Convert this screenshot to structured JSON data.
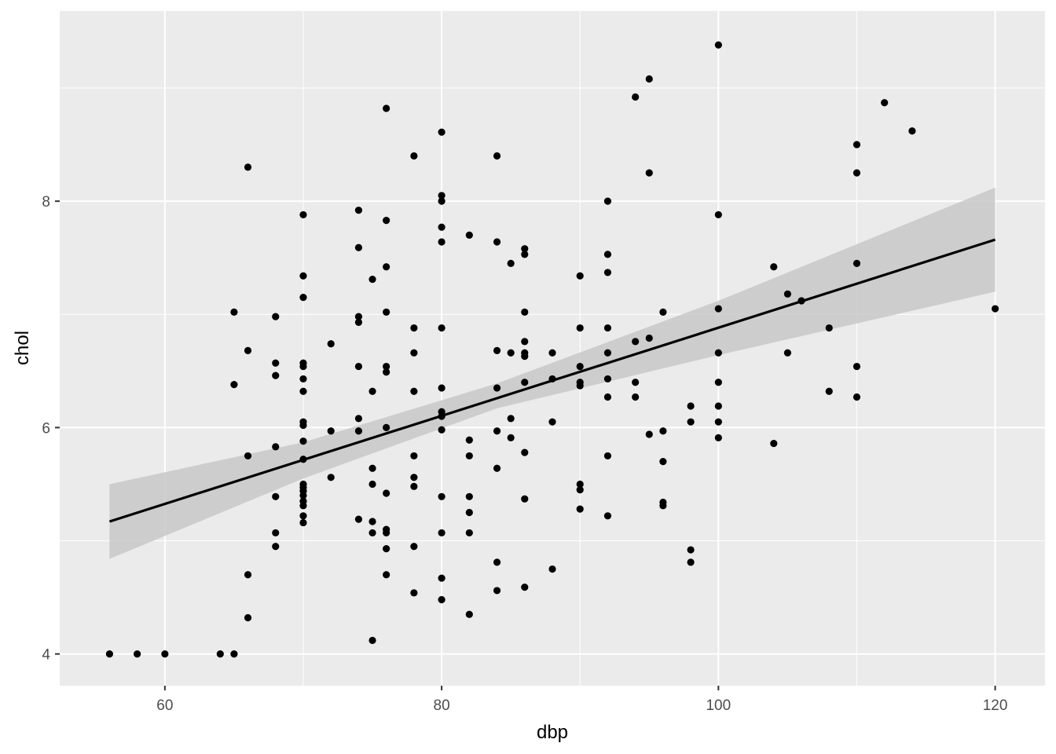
{
  "chart_data": {
    "type": "scatter",
    "xlabel": "dbp",
    "ylabel": "chol",
    "xlim": [
      52.4,
      123.6
    ],
    "ylim": [
      3.72,
      9.68
    ],
    "x_ticks": [
      60,
      80,
      100,
      120
    ],
    "y_ticks": [
      4,
      6,
      8
    ],
    "x_tick_labels": [
      "60",
      "80",
      "100",
      "120"
    ],
    "y_tick_labels": [
      "4",
      "6",
      "8"
    ],
    "grid": true,
    "colors": {
      "panel": "#ebebeb",
      "grid_major": "#ffffff",
      "points": "#000000",
      "fit_line": "#000000",
      "confidence_band": "#c8c8c8"
    },
    "points": [
      {
        "x": 56,
        "y": 4.0
      },
      {
        "x": 58,
        "y": 4.0
      },
      {
        "x": 60,
        "y": 4.0
      },
      {
        "x": 64,
        "y": 4.0
      },
      {
        "x": 65,
        "y": 4.0
      },
      {
        "x": 65,
        "y": 7.02
      },
      {
        "x": 65,
        "y": 6.38
      },
      {
        "x": 66,
        "y": 8.3
      },
      {
        "x": 66,
        "y": 6.68
      },
      {
        "x": 66,
        "y": 5.75
      },
      {
        "x": 66,
        "y": 4.7
      },
      {
        "x": 66,
        "y": 4.32
      },
      {
        "x": 68,
        "y": 6.98
      },
      {
        "x": 68,
        "y": 6.57
      },
      {
        "x": 68,
        "y": 6.46
      },
      {
        "x": 68,
        "y": 5.83
      },
      {
        "x": 68,
        "y": 5.39
      },
      {
        "x": 68,
        "y": 5.07
      },
      {
        "x": 68,
        "y": 4.95
      },
      {
        "x": 70,
        "y": 7.88
      },
      {
        "x": 70,
        "y": 7.34
      },
      {
        "x": 70,
        "y": 7.15
      },
      {
        "x": 70,
        "y": 6.57
      },
      {
        "x": 70,
        "y": 6.54
      },
      {
        "x": 70,
        "y": 6.43
      },
      {
        "x": 70,
        "y": 6.32
      },
      {
        "x": 70,
        "y": 6.05
      },
      {
        "x": 70,
        "y": 6.02
      },
      {
        "x": 70,
        "y": 5.88
      },
      {
        "x": 70,
        "y": 5.72
      },
      {
        "x": 70,
        "y": 5.5
      },
      {
        "x": 70,
        "y": 5.47
      },
      {
        "x": 70,
        "y": 5.44
      },
      {
        "x": 70,
        "y": 5.4
      },
      {
        "x": 70,
        "y": 5.35
      },
      {
        "x": 70,
        "y": 5.31
      },
      {
        "x": 70,
        "y": 5.22
      },
      {
        "x": 70,
        "y": 5.16
      },
      {
        "x": 72,
        "y": 6.74
      },
      {
        "x": 72,
        "y": 5.97
      },
      {
        "x": 72,
        "y": 5.56
      },
      {
        "x": 74,
        "y": 7.92
      },
      {
        "x": 74,
        "y": 7.59
      },
      {
        "x": 74,
        "y": 6.98
      },
      {
        "x": 74,
        "y": 6.93
      },
      {
        "x": 74,
        "y": 6.54
      },
      {
        "x": 74,
        "y": 6.08
      },
      {
        "x": 74,
        "y": 5.97
      },
      {
        "x": 74,
        "y": 5.19
      },
      {
        "x": 75,
        "y": 7.31
      },
      {
        "x": 75,
        "y": 6.32
      },
      {
        "x": 75,
        "y": 5.64
      },
      {
        "x": 75,
        "y": 5.5
      },
      {
        "x": 75,
        "y": 5.17
      },
      {
        "x": 75,
        "y": 5.07
      },
      {
        "x": 75,
        "y": 4.12
      },
      {
        "x": 76,
        "y": 8.82
      },
      {
        "x": 76,
        "y": 7.83
      },
      {
        "x": 76,
        "y": 7.42
      },
      {
        "x": 76,
        "y": 7.02
      },
      {
        "x": 76,
        "y": 6.54
      },
      {
        "x": 76,
        "y": 6.49
      },
      {
        "x": 76,
        "y": 6.0
      },
      {
        "x": 76,
        "y": 5.42
      },
      {
        "x": 76,
        "y": 5.1
      },
      {
        "x": 76,
        "y": 5.07
      },
      {
        "x": 76,
        "y": 4.93
      },
      {
        "x": 76,
        "y": 4.7
      },
      {
        "x": 78,
        "y": 8.4
      },
      {
        "x": 78,
        "y": 6.88
      },
      {
        "x": 78,
        "y": 6.66
      },
      {
        "x": 78,
        "y": 6.32
      },
      {
        "x": 78,
        "y": 5.75
      },
      {
        "x": 78,
        "y": 5.56
      },
      {
        "x": 78,
        "y": 5.48
      },
      {
        "x": 78,
        "y": 4.95
      },
      {
        "x": 78,
        "y": 4.54
      },
      {
        "x": 80,
        "y": 8.61
      },
      {
        "x": 80,
        "y": 8.05
      },
      {
        "x": 80,
        "y": 8.0
      },
      {
        "x": 80,
        "y": 7.77
      },
      {
        "x": 80,
        "y": 7.64
      },
      {
        "x": 80,
        "y": 6.88
      },
      {
        "x": 80,
        "y": 6.35
      },
      {
        "x": 80,
        "y": 6.14
      },
      {
        "x": 80,
        "y": 6.1
      },
      {
        "x": 80,
        "y": 5.98
      },
      {
        "x": 80,
        "y": 5.39
      },
      {
        "x": 80,
        "y": 5.07
      },
      {
        "x": 80,
        "y": 4.67
      },
      {
        "x": 80,
        "y": 4.48
      },
      {
        "x": 82,
        "y": 7.7
      },
      {
        "x": 82,
        "y": 5.89
      },
      {
        "x": 82,
        "y": 5.75
      },
      {
        "x": 82,
        "y": 5.39
      },
      {
        "x": 82,
        "y": 5.25
      },
      {
        "x": 82,
        "y": 5.07
      },
      {
        "x": 82,
        "y": 4.35
      },
      {
        "x": 84,
        "y": 8.4
      },
      {
        "x": 84,
        "y": 7.64
      },
      {
        "x": 84,
        "y": 6.68
      },
      {
        "x": 84,
        "y": 6.35
      },
      {
        "x": 84,
        "y": 5.97
      },
      {
        "x": 84,
        "y": 5.64
      },
      {
        "x": 84,
        "y": 4.81
      },
      {
        "x": 84,
        "y": 4.56
      },
      {
        "x": 85,
        "y": 7.45
      },
      {
        "x": 85,
        "y": 6.66
      },
      {
        "x": 85,
        "y": 6.08
      },
      {
        "x": 85,
        "y": 5.91
      },
      {
        "x": 86,
        "y": 7.58
      },
      {
        "x": 86,
        "y": 7.53
      },
      {
        "x": 86,
        "y": 7.02
      },
      {
        "x": 86,
        "y": 6.76
      },
      {
        "x": 86,
        "y": 6.66
      },
      {
        "x": 86,
        "y": 6.63
      },
      {
        "x": 86,
        "y": 6.4
      },
      {
        "x": 86,
        "y": 5.78
      },
      {
        "x": 86,
        "y": 5.37
      },
      {
        "x": 86,
        "y": 4.59
      },
      {
        "x": 88,
        "y": 6.66
      },
      {
        "x": 88,
        "y": 6.43
      },
      {
        "x": 88,
        "y": 6.05
      },
      {
        "x": 88,
        "y": 4.75
      },
      {
        "x": 90,
        "y": 7.34
      },
      {
        "x": 90,
        "y": 6.88
      },
      {
        "x": 90,
        "y": 6.54
      },
      {
        "x": 90,
        "y": 6.4
      },
      {
        "x": 90,
        "y": 6.37
      },
      {
        "x": 90,
        "y": 5.5
      },
      {
        "x": 90,
        "y": 5.45
      },
      {
        "x": 90,
        "y": 5.28
      },
      {
        "x": 92,
        "y": 8.0
      },
      {
        "x": 92,
        "y": 7.53
      },
      {
        "x": 92,
        "y": 7.37
      },
      {
        "x": 92,
        "y": 6.88
      },
      {
        "x": 92,
        "y": 6.66
      },
      {
        "x": 92,
        "y": 6.43
      },
      {
        "x": 92,
        "y": 6.27
      },
      {
        "x": 92,
        "y": 5.75
      },
      {
        "x": 92,
        "y": 5.22
      },
      {
        "x": 94,
        "y": 8.92
      },
      {
        "x": 94,
        "y": 6.76
      },
      {
        "x": 94,
        "y": 6.4
      },
      {
        "x": 94,
        "y": 6.27
      },
      {
        "x": 95,
        "y": 9.08
      },
      {
        "x": 95,
        "y": 8.25
      },
      {
        "x": 95,
        "y": 6.79
      },
      {
        "x": 95,
        "y": 5.94
      },
      {
        "x": 96,
        "y": 7.02
      },
      {
        "x": 96,
        "y": 5.97
      },
      {
        "x": 96,
        "y": 5.7
      },
      {
        "x": 96,
        "y": 5.34
      },
      {
        "x": 96,
        "y": 5.31
      },
      {
        "x": 98,
        "y": 6.19
      },
      {
        "x": 98,
        "y": 6.05
      },
      {
        "x": 98,
        "y": 4.92
      },
      {
        "x": 98,
        "y": 4.81
      },
      {
        "x": 100,
        "y": 9.38
      },
      {
        "x": 100,
        "y": 7.88
      },
      {
        "x": 100,
        "y": 7.05
      },
      {
        "x": 100,
        "y": 6.66
      },
      {
        "x": 100,
        "y": 6.4
      },
      {
        "x": 100,
        "y": 6.19
      },
      {
        "x": 100,
        "y": 6.05
      },
      {
        "x": 100,
        "y": 5.91
      },
      {
        "x": 104,
        "y": 7.42
      },
      {
        "x": 104,
        "y": 5.86
      },
      {
        "x": 105,
        "y": 7.18
      },
      {
        "x": 105,
        "y": 6.66
      },
      {
        "x": 106,
        "y": 7.12
      },
      {
        "x": 108,
        "y": 6.88
      },
      {
        "x": 108,
        "y": 6.32
      },
      {
        "x": 110,
        "y": 8.5
      },
      {
        "x": 110,
        "y": 8.25
      },
      {
        "x": 110,
        "y": 7.45
      },
      {
        "x": 110,
        "y": 6.54
      },
      {
        "x": 110,
        "y": 6.27
      },
      {
        "x": 112,
        "y": 8.87
      },
      {
        "x": 114,
        "y": 8.62
      },
      {
        "x": 120,
        "y": 7.05
      }
    ],
    "fit_line": [
      {
        "x": 56,
        "y": 5.17
      },
      {
        "x": 120,
        "y": 7.66
      }
    ],
    "confidence_band": [
      {
        "x": 56,
        "lower": 4.84,
        "upper": 5.5
      },
      {
        "x": 70,
        "lower": 5.55,
        "upper": 5.87
      },
      {
        "x": 84,
        "lower": 6.17,
        "upper": 6.39
      },
      {
        "x": 100,
        "lower": 6.64,
        "upper": 7.12
      },
      {
        "x": 120,
        "lower": 7.2,
        "upper": 8.12
      }
    ]
  }
}
